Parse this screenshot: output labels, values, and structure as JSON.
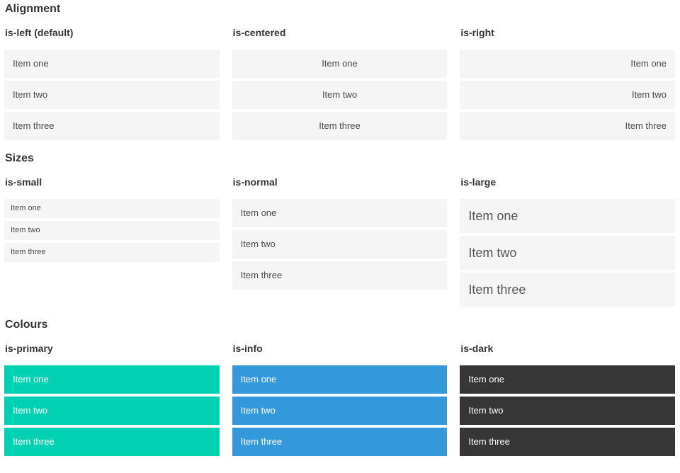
{
  "sections": [
    {
      "title": "Alignment",
      "columns": [
        {
          "subtitle": "is-left (default)",
          "variant": "left",
          "items": [
            "Item one",
            "Item two",
            "Item three"
          ]
        },
        {
          "subtitle": "is-centered",
          "variant": "centered",
          "items": [
            "Item one",
            "Item two",
            "Item three"
          ]
        },
        {
          "subtitle": "is-right",
          "variant": "right",
          "items": [
            "Item one",
            "Item two",
            "Item three"
          ]
        }
      ]
    },
    {
      "title": "Sizes",
      "columns": [
        {
          "subtitle": "is-small",
          "variant": "small",
          "items": [
            "Item one",
            "Item two",
            "Item three"
          ]
        },
        {
          "subtitle": "is-normal",
          "variant": "normal",
          "items": [
            "Item one",
            "Item two",
            "Item three"
          ]
        },
        {
          "subtitle": "is-large",
          "variant": "large",
          "items": [
            "Item one",
            "Item two",
            "Item three"
          ]
        }
      ]
    },
    {
      "title": "Colours",
      "columns": [
        {
          "subtitle": "is-primary",
          "variant": "primary",
          "items": [
            "Item one",
            "Item two",
            "Item three"
          ]
        },
        {
          "subtitle": "is-info",
          "variant": "info",
          "items": [
            "Item one",
            "Item two",
            "Item three"
          ]
        },
        {
          "subtitle": "is-dark",
          "variant": "dark",
          "items": [
            "Item one",
            "Item two",
            "Item three"
          ]
        }
      ]
    }
  ],
  "colors": {
    "item_background": "#f5f5f5",
    "item_text": "#4a4a4a",
    "heading_text": "#363636",
    "primary": "#00d1b2",
    "info": "#3499db",
    "dark": "#363636",
    "colored_item_text": "#ffffff"
  }
}
